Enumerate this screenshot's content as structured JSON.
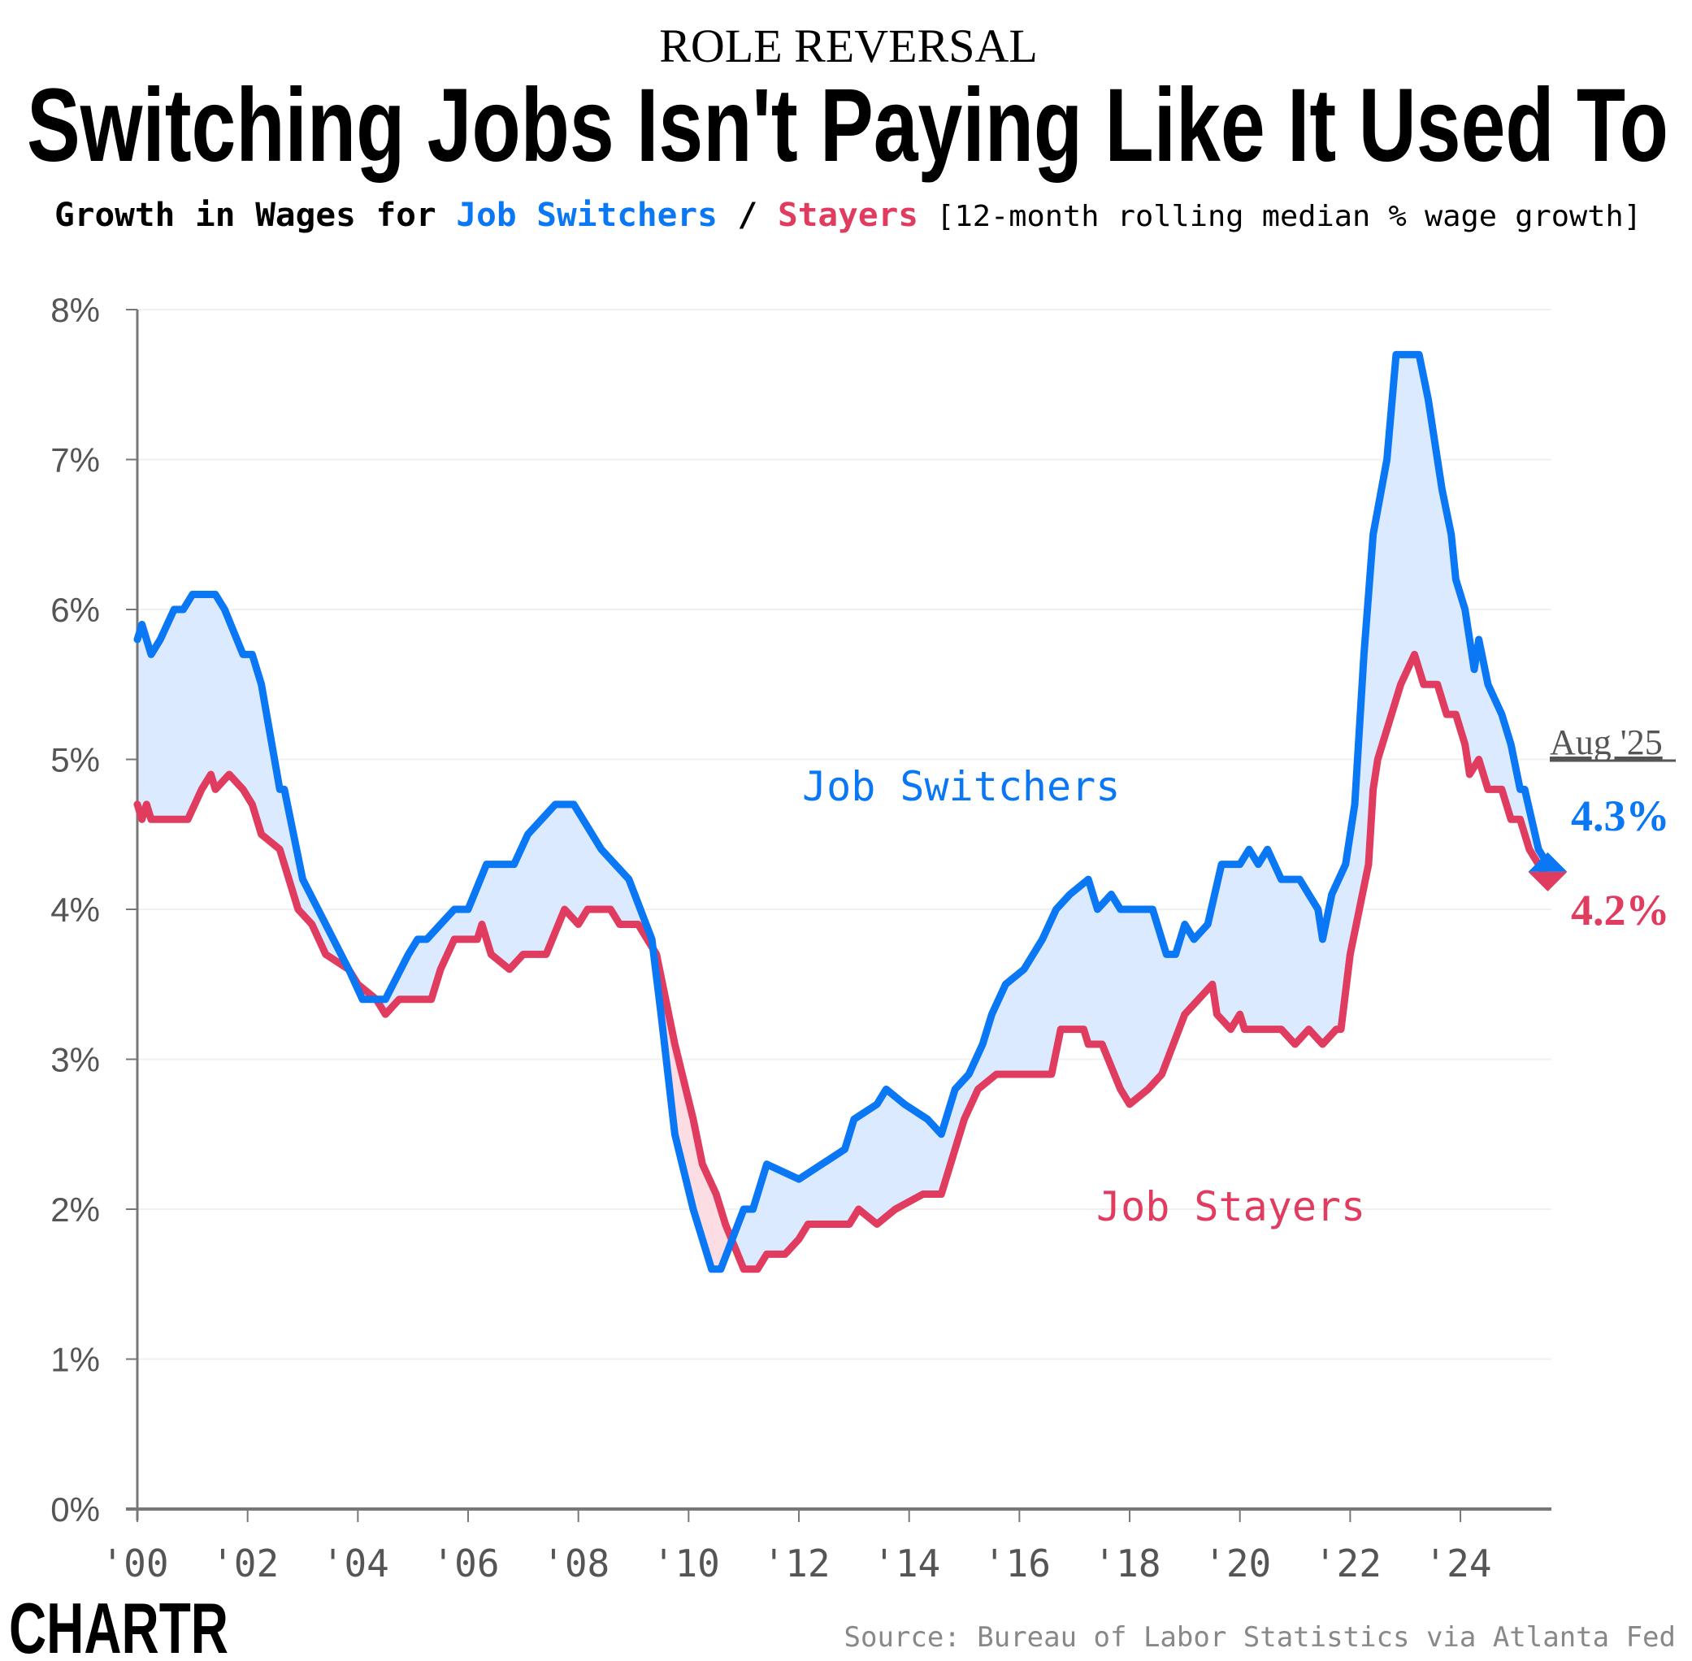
{
  "header": {
    "kicker": "ROLE REVERSAL",
    "title": "Switching Jobs Isn't Paying Like It Used To",
    "subtitle_prefix": "Growth in Wages for ",
    "subtitle_switchers": "Job Switchers",
    "subtitle_sep": " / ",
    "subtitle_stayers": "Stayers",
    "subtitle_note": " [12-month rolling median % wage growth]"
  },
  "footer": {
    "logo": "CHARTR",
    "source": "Source: Bureau of Labor Statistics via Atlanta Fed"
  },
  "colors": {
    "switchers": "#0a77f4",
    "stayers": "#e03c5f",
    "fill_switchers": "#dceaff",
    "fill_stayers": "#fbdde3",
    "axis": "#777777",
    "text": "#555555"
  },
  "chart_data": {
    "type": "line",
    "title": "Growth in Wages for Job Switchers / Stayers",
    "ylabel": "",
    "xlabel": "",
    "ylim": [
      0,
      8
    ],
    "xlim": [
      "2000-01",
      "2025-08"
    ],
    "y_ticks": [
      "0%",
      "1%",
      "2%",
      "3%",
      "4%",
      "5%",
      "6%",
      "7%",
      "8%"
    ],
    "x_ticks": [
      "'00",
      "'02",
      "'04",
      "'06",
      "'08",
      "'10",
      "'12",
      "'14",
      "'16",
      "'18",
      "'20",
      "'22",
      "'24"
    ],
    "grid": "horizontal",
    "series": [
      {
        "name": "Job Switchers",
        "color": "#0a77f4",
        "points": [
          [
            "2000-01",
            5.8
          ],
          [
            "2000-02",
            5.9
          ],
          [
            "2000-04",
            5.7
          ],
          [
            "2000-06",
            5.8
          ],
          [
            "2000-09",
            6.0
          ],
          [
            "2000-11",
            6.0
          ],
          [
            "2001-01",
            6.1
          ],
          [
            "2001-06",
            6.1
          ],
          [
            "2001-08",
            6.0
          ],
          [
            "2001-12",
            5.7
          ],
          [
            "2002-02",
            5.7
          ],
          [
            "2002-04",
            5.5
          ],
          [
            "2002-08",
            4.8
          ],
          [
            "2002-09",
            4.8
          ],
          [
            "2003-01",
            4.2
          ],
          [
            "2003-06",
            3.9
          ],
          [
            "2003-11",
            3.6
          ],
          [
            "2004-02",
            3.4
          ],
          [
            "2004-07",
            3.4
          ],
          [
            "2004-12",
            3.7
          ],
          [
            "2005-02",
            3.8
          ],
          [
            "2005-04",
            3.8
          ],
          [
            "2005-07",
            3.9
          ],
          [
            "2005-10",
            4.0
          ],
          [
            "2006-01",
            4.0
          ],
          [
            "2006-05",
            4.3
          ],
          [
            "2006-11",
            4.3
          ],
          [
            "2007-02",
            4.5
          ],
          [
            "2007-05",
            4.6
          ],
          [
            "2007-08",
            4.7
          ],
          [
            "2007-12",
            4.7
          ],
          [
            "2008-02",
            4.6
          ],
          [
            "2008-06",
            4.4
          ],
          [
            "2008-09",
            4.3
          ],
          [
            "2008-12",
            4.2
          ],
          [
            "2009-05",
            3.8
          ],
          [
            "2009-07",
            3.3
          ],
          [
            "2009-10",
            2.5
          ],
          [
            "2010-02",
            2.0
          ],
          [
            "2010-06",
            1.6
          ],
          [
            "2010-08",
            1.6
          ],
          [
            "2011-01",
            2.0
          ],
          [
            "2011-03",
            2.0
          ],
          [
            "2011-06",
            2.3
          ],
          [
            "2012-01",
            2.2
          ],
          [
            "2012-06",
            2.3
          ],
          [
            "2012-11",
            2.4
          ],
          [
            "2013-01",
            2.6
          ],
          [
            "2013-06",
            2.7
          ],
          [
            "2013-08",
            2.8
          ],
          [
            "2013-12",
            2.7
          ],
          [
            "2014-05",
            2.6
          ],
          [
            "2014-08",
            2.5
          ],
          [
            "2014-11",
            2.8
          ],
          [
            "2015-02",
            2.9
          ],
          [
            "2015-05",
            3.1
          ],
          [
            "2015-07",
            3.3
          ],
          [
            "2015-10",
            3.5
          ],
          [
            "2016-02",
            3.6
          ],
          [
            "2016-06",
            3.8
          ],
          [
            "2016-09",
            4.0
          ],
          [
            "2016-12",
            4.1
          ],
          [
            "2017-04",
            4.2
          ],
          [
            "2017-06",
            4.0
          ],
          [
            "2017-09",
            4.1
          ],
          [
            "2017-11",
            4.0
          ],
          [
            "2018-06",
            4.0
          ],
          [
            "2018-09",
            3.7
          ],
          [
            "2018-11",
            3.7
          ],
          [
            "2019-01",
            3.9
          ],
          [
            "2019-03",
            3.8
          ],
          [
            "2019-06",
            3.9
          ],
          [
            "2019-09",
            4.3
          ],
          [
            "2020-01",
            4.3
          ],
          [
            "2020-03",
            4.4
          ],
          [
            "2020-05",
            4.3
          ],
          [
            "2020-07",
            4.4
          ],
          [
            "2020-10",
            4.2
          ],
          [
            "2021-02",
            4.2
          ],
          [
            "2021-06",
            4.0
          ],
          [
            "2021-07",
            3.8
          ],
          [
            "2021-09",
            4.1
          ],
          [
            "2021-12",
            4.3
          ],
          [
            "2022-02",
            4.7
          ],
          [
            "2022-04",
            5.7
          ],
          [
            "2022-06",
            6.5
          ],
          [
            "2022-09",
            7.0
          ],
          [
            "2022-11",
            7.7
          ],
          [
            "2023-04",
            7.7
          ],
          [
            "2023-06",
            7.4
          ],
          [
            "2023-09",
            6.8
          ],
          [
            "2023-11",
            6.5
          ],
          [
            "2023-12",
            6.2
          ],
          [
            "2024-02",
            6.0
          ],
          [
            "2024-04",
            5.6
          ],
          [
            "2024-05",
            5.8
          ],
          [
            "2024-07",
            5.5
          ],
          [
            "2024-10",
            5.3
          ],
          [
            "2024-12",
            5.1
          ],
          [
            "2025-02",
            4.8
          ],
          [
            "2025-03",
            4.8
          ],
          [
            "2025-06",
            4.4
          ],
          [
            "2025-08",
            4.3
          ]
        ]
      },
      {
        "name": "Job Stayers",
        "color": "#e03c5f",
        "points": [
          [
            "2000-01",
            4.7
          ],
          [
            "2000-02",
            4.6
          ],
          [
            "2000-03",
            4.7
          ],
          [
            "2000-04",
            4.6
          ],
          [
            "2000-12",
            4.6
          ],
          [
            "2001-03",
            4.8
          ],
          [
            "2001-05",
            4.9
          ],
          [
            "2001-06",
            4.8
          ],
          [
            "2001-09",
            4.9
          ],
          [
            "2001-12",
            4.8
          ],
          [
            "2002-02",
            4.7
          ],
          [
            "2002-04",
            4.5
          ],
          [
            "2002-08",
            4.4
          ],
          [
            "2002-12",
            4.0
          ],
          [
            "2003-03",
            3.9
          ],
          [
            "2003-06",
            3.7
          ],
          [
            "2003-11",
            3.6
          ],
          [
            "2004-01",
            3.5
          ],
          [
            "2004-05",
            3.4
          ],
          [
            "2004-07",
            3.3
          ],
          [
            "2004-10",
            3.4
          ],
          [
            "2005-05",
            3.4
          ],
          [
            "2005-07",
            3.6
          ],
          [
            "2005-10",
            3.8
          ],
          [
            "2006-03",
            3.8
          ],
          [
            "2006-04",
            3.9
          ],
          [
            "2006-06",
            3.7
          ],
          [
            "2006-10",
            3.6
          ],
          [
            "2007-01",
            3.7
          ],
          [
            "2007-06",
            3.7
          ],
          [
            "2007-10",
            4.0
          ],
          [
            "2008-01",
            3.9
          ],
          [
            "2008-03",
            4.0
          ],
          [
            "2008-08",
            4.0
          ],
          [
            "2008-10",
            3.9
          ],
          [
            "2009-02",
            3.9
          ],
          [
            "2009-06",
            3.7
          ],
          [
            "2009-08",
            3.4
          ],
          [
            "2009-10",
            3.1
          ],
          [
            "2010-02",
            2.6
          ],
          [
            "2010-04",
            2.3
          ],
          [
            "2010-07",
            2.1
          ],
          [
            "2010-09",
            1.9
          ],
          [
            "2010-11",
            1.75
          ],
          [
            "2011-01",
            1.6
          ],
          [
            "2011-04",
            1.6
          ],
          [
            "2011-06",
            1.7
          ],
          [
            "2011-10",
            1.7
          ],
          [
            "2012-01",
            1.8
          ],
          [
            "2012-03",
            1.9
          ],
          [
            "2012-12",
            1.9
          ],
          [
            "2013-02",
            2.0
          ],
          [
            "2013-06",
            1.9
          ],
          [
            "2013-10",
            2.0
          ],
          [
            "2014-04",
            2.1
          ],
          [
            "2014-08",
            2.1
          ],
          [
            "2015-01",
            2.6
          ],
          [
            "2015-04",
            2.8
          ],
          [
            "2015-08",
            2.9
          ],
          [
            "2016-08",
            2.9
          ],
          [
            "2016-10",
            3.2
          ],
          [
            "2017-03",
            3.2
          ],
          [
            "2017-04",
            3.1
          ],
          [
            "2017-07",
            3.1
          ],
          [
            "2017-11",
            2.8
          ],
          [
            "2018-01",
            2.7
          ],
          [
            "2018-05",
            2.8
          ],
          [
            "2018-08",
            2.9
          ],
          [
            "2019-01",
            3.3
          ],
          [
            "2019-04",
            3.4
          ],
          [
            "2019-07",
            3.5
          ],
          [
            "2019-08",
            3.3
          ],
          [
            "2019-11",
            3.2
          ],
          [
            "2020-01",
            3.3
          ],
          [
            "2020-02",
            3.2
          ],
          [
            "2020-10",
            3.2
          ],
          [
            "2021-01",
            3.1
          ],
          [
            "2021-04",
            3.2
          ],
          [
            "2021-07",
            3.1
          ],
          [
            "2021-10",
            3.2
          ],
          [
            "2021-11",
            3.2
          ],
          [
            "2022-01",
            3.7
          ],
          [
            "2022-03",
            4.0
          ],
          [
            "2022-05",
            4.3
          ],
          [
            "2022-06",
            4.8
          ],
          [
            "2022-07",
            5.0
          ],
          [
            "2022-10",
            5.3
          ],
          [
            "2022-12",
            5.5
          ],
          [
            "2023-03",
            5.7
          ],
          [
            "2023-05",
            5.5
          ],
          [
            "2023-08",
            5.5
          ],
          [
            "2023-10",
            5.3
          ],
          [
            "2023-12",
            5.3
          ],
          [
            "2024-02",
            5.1
          ],
          [
            "2024-03",
            4.9
          ],
          [
            "2024-05",
            5.0
          ],
          [
            "2024-07",
            4.8
          ],
          [
            "2024-10",
            4.8
          ],
          [
            "2024-12",
            4.6
          ],
          [
            "2025-02",
            4.6
          ],
          [
            "2025-04",
            4.4
          ],
          [
            "2025-08",
            4.2
          ]
        ]
      }
    ],
    "annotations": {
      "switchers_label": "Job Switchers",
      "stayers_label": "Job Stayers",
      "latest_date": "Aug '25",
      "latest_switchers": "4.3%",
      "latest_stayers": "4.2%"
    }
  }
}
